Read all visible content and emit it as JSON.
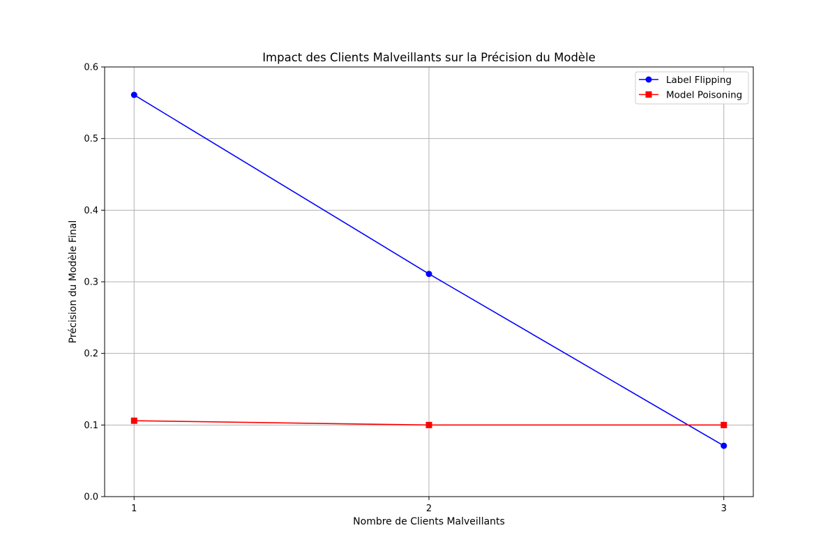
{
  "chart_data": {
    "type": "line",
    "title": "Impact des Clients Malveillants sur la Précision du Modèle",
    "xlabel": "Nombre de Clients Malveillants",
    "ylabel": "Précision du Modèle Final",
    "x": [
      1,
      2,
      3
    ],
    "xticks": [
      "1",
      "2",
      "3"
    ],
    "xlim": [
      0.9,
      3.1
    ],
    "ylim": [
      0.0,
      0.6
    ],
    "yticks": [
      "0.0",
      "0.1",
      "0.2",
      "0.3",
      "0.4",
      "0.5",
      "0.6"
    ],
    "grid": true,
    "legend_position": "top-right",
    "series": [
      {
        "name": "Label Flipping",
        "values": [
          0.561,
          0.311,
          0.071
        ],
        "color": "#0000ff",
        "marker": "circle"
      },
      {
        "name": "Model Poisoning",
        "values": [
          0.106,
          0.1,
          0.1
        ],
        "color": "#ff0000",
        "marker": "square"
      }
    ]
  }
}
